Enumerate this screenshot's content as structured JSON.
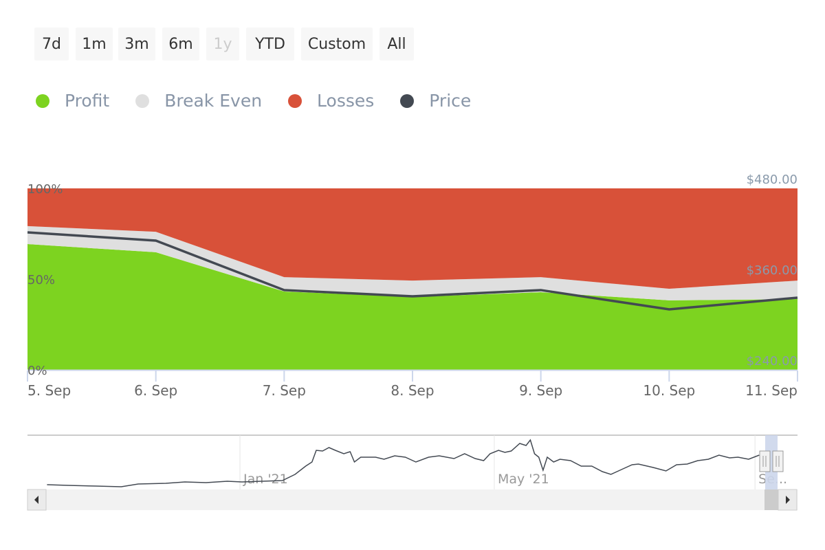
{
  "range_selector": {
    "buttons": [
      {
        "label": "7d",
        "enabled": true
      },
      {
        "label": "1m",
        "enabled": true
      },
      {
        "label": "3m",
        "enabled": true
      },
      {
        "label": "6m",
        "enabled": true
      },
      {
        "label": "1y",
        "enabled": false
      },
      {
        "label": "YTD",
        "enabled": true
      },
      {
        "label": "Custom",
        "enabled": true
      },
      {
        "label": "All",
        "enabled": true
      }
    ]
  },
  "chart_data": {
    "type": "area",
    "stacking": "percent",
    "categories": [
      "5. Sep",
      "6. Sep",
      "7. Sep",
      "8. Sep",
      "9. Sep",
      "10. Sep",
      "11. Sep"
    ],
    "series": [
      {
        "name": "Profit",
        "color": "#7dd320",
        "values": [
          69.3,
          64.8,
          43.2,
          40.2,
          42.8,
          38.3,
          39.0
        ]
      },
      {
        "name": "Break Even",
        "color": "#dfdfdf",
        "values": [
          9.9,
          11.3,
          7.9,
          9.0,
          8.3,
          6.4,
          10.2
        ]
      },
      {
        "name": "Losses",
        "color": "#d85139",
        "values": [
          20.8,
          23.9,
          48.9,
          50.8,
          48.9,
          55.3,
          50.8
        ]
      },
      {
        "name": "Price",
        "color": "#434952",
        "type": "line",
        "axis": "right",
        "values": [
          421.8,
          410.9,
          345.5,
          337.3,
          345.5,
          320.0,
          335.5
        ]
      }
    ],
    "y_left": {
      "ticks": [
        "0%",
        "50%",
        "100%"
      ],
      "range": [
        0,
        100
      ]
    },
    "y_right": {
      "ticks": [
        "$240.00",
        "$360.00",
        "$480.00"
      ],
      "range": [
        240,
        480
      ]
    },
    "legend_position": "top-left"
  },
  "navigator": {
    "labels": [
      {
        "text": "Jan '21",
        "day": 0
      },
      {
        "text": "May '21",
        "day": 120
      },
      {
        "text": "Se...",
        "day": 243
      }
    ],
    "series": [
      [
        -91,
        35
      ],
      [
        -81,
        30
      ],
      [
        -68,
        25
      ],
      [
        -56,
        20
      ],
      [
        -48,
        40
      ],
      [
        -35,
        45
      ],
      [
        -26,
        55
      ],
      [
        -16,
        50
      ],
      [
        -6,
        60
      ],
      [
        1,
        55
      ],
      [
        10,
        60
      ],
      [
        20,
        65
      ],
      [
        26,
        110
      ],
      [
        31,
        170
      ],
      [
        34,
        200
      ],
      [
        36,
        285
      ],
      [
        39,
        280
      ],
      [
        42,
        305
      ],
      [
        45,
        285
      ],
      [
        49,
        260
      ],
      [
        52,
        275
      ],
      [
        54,
        200
      ],
      [
        57,
        235
      ],
      [
        64,
        235
      ],
      [
        68,
        220
      ],
      [
        73,
        245
      ],
      [
        78,
        235
      ],
      [
        83,
        200
      ],
      [
        89,
        235
      ],
      [
        94,
        245
      ],
      [
        101,
        225
      ],
      [
        106,
        260
      ],
      [
        111,
        225
      ],
      [
        115,
        210
      ],
      [
        118,
        260
      ],
      [
        122,
        285
      ],
      [
        125,
        270
      ],
      [
        128,
        280
      ],
      [
        132,
        335
      ],
      [
        135,
        320
      ],
      [
        137,
        360
      ],
      [
        139,
        260
      ],
      [
        141,
        235
      ],
      [
        143,
        140
      ],
      [
        145,
        235
      ],
      [
        148,
        200
      ],
      [
        151,
        220
      ],
      [
        156,
        210
      ],
      [
        161,
        170
      ],
      [
        166,
        170
      ],
      [
        171,
        130
      ],
      [
        175,
        110
      ],
      [
        180,
        145
      ],
      [
        185,
        180
      ],
      [
        188,
        185
      ],
      [
        195,
        160
      ],
      [
        201,
        135
      ],
      [
        206,
        180
      ],
      [
        211,
        185
      ],
      [
        216,
        210
      ],
      [
        221,
        220
      ],
      [
        226,
        250
      ],
      [
        231,
        230
      ],
      [
        235,
        235
      ],
      [
        240,
        220
      ],
      [
        245,
        250
      ]
    ]
  }
}
